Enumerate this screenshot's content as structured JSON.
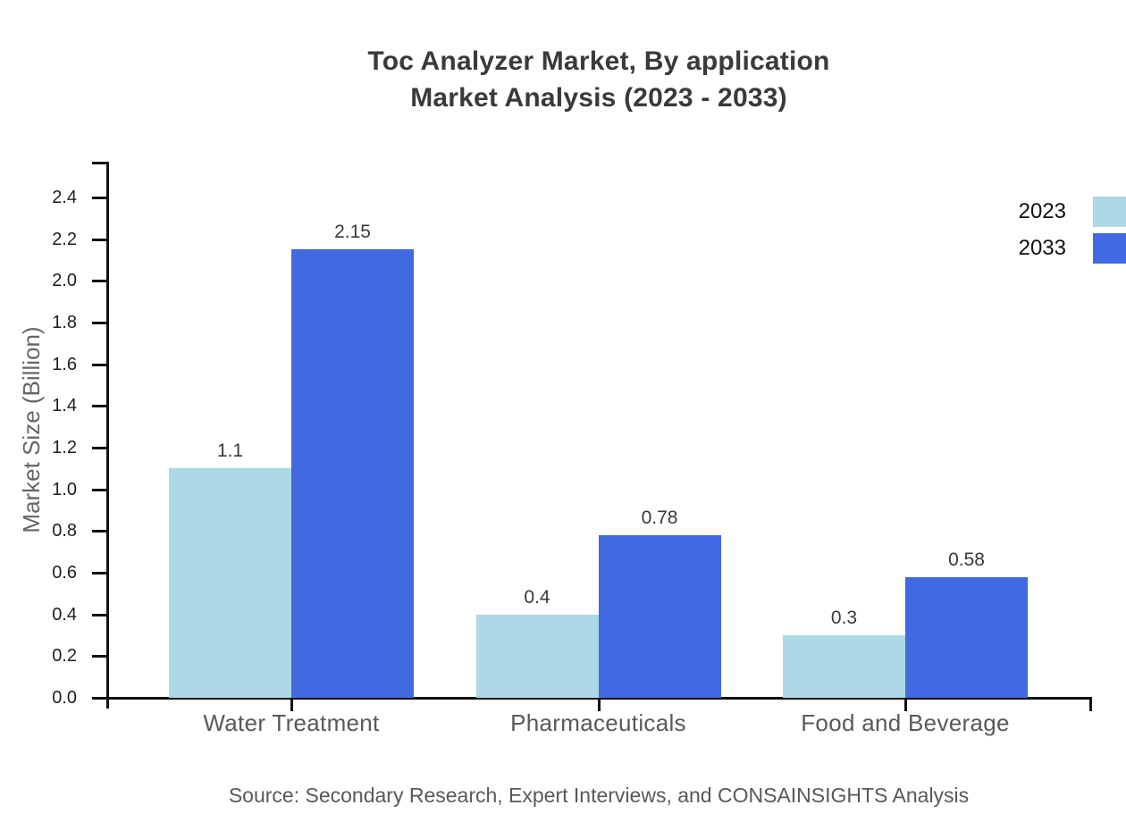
{
  "title": {
    "line1": "Toc Analyzer Market, By application",
    "line2": "Market Analysis (2023 - 2033)"
  },
  "source": "Source: Secondary Research, Expert Interviews, and CONSAINSIGHTS Analysis",
  "chart_data": {
    "type": "bar",
    "title": "Toc Analyzer Market, By application Market Analysis (2023 - 2033)",
    "categories": [
      "Water Treatment",
      "Pharmaceuticals",
      "Food and Beverage"
    ],
    "series": [
      {
        "name": "2023",
        "color": "#ADD8E6",
        "values": [
          1.1,
          0.4,
          0.3
        ]
      },
      {
        "name": "2033",
        "color": "#4169E1",
        "values": [
          2.15,
          0.78,
          0.58
        ]
      }
    ],
    "value_labels": [
      "1.1",
      "2.15",
      "0.4",
      "0.78",
      "0.3",
      "0.58"
    ],
    "xlabel": "",
    "ylabel": "Market Size (Billion)",
    "ylim": [
      0,
      2.58
    ],
    "yticks": [
      0.0,
      0.2,
      0.4,
      0.6,
      0.8,
      1.0,
      1.2,
      1.4,
      1.6,
      1.8,
      2.0,
      2.2,
      2.4
    ],
    "grid": false,
    "legend_position": "top-right",
    "axis_color": "#111111",
    "tick_text_color": "#1f1f1f",
    "category_text_color": "#595959"
  }
}
